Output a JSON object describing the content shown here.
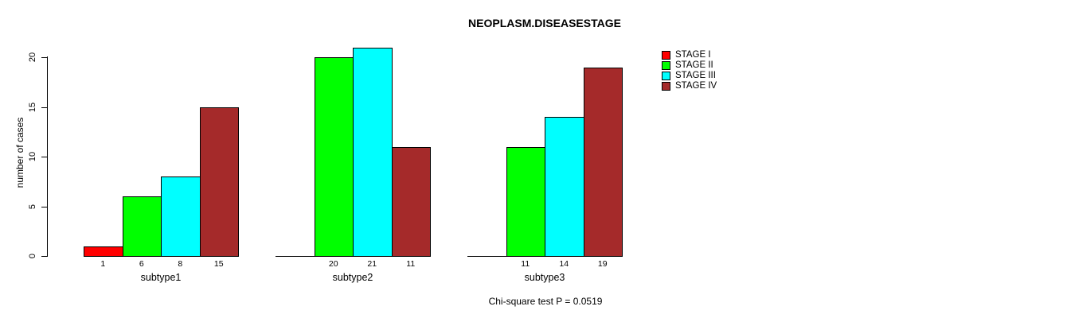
{
  "figure": {
    "background": "#ffffff",
    "text_color": "#000000"
  },
  "chart_data": {
    "type": "bar",
    "title": "NEOPLASM.DISEASESTAGE",
    "ylabel": "number of cases",
    "xlabel": "",
    "categories": [
      "subtype1",
      "subtype2",
      "subtype3"
    ],
    "series": [
      {
        "name": "STAGE I",
        "color": "#FF0000",
        "values": [
          1,
          0,
          0
        ]
      },
      {
        "name": "STAGE II",
        "color": "#00FF00",
        "values": [
          6,
          20,
          11
        ]
      },
      {
        "name": "STAGE III",
        "color": "#00FFFF",
        "values": [
          8,
          21,
          14
        ]
      },
      {
        "name": "STAGE IV",
        "color": "#A52A2A",
        "values": [
          15,
          11,
          19
        ]
      }
    ],
    "yticks": [
      0,
      5,
      10,
      15,
      20
    ],
    "ylim": [
      0,
      20
    ],
    "grid": false,
    "legend_position": "right",
    "legend_entries": [
      "STAGE I",
      "STAGE II",
      "STAGE III",
      "STAGE IV"
    ],
    "annotation": "Chi-square test P = 0.0519"
  }
}
